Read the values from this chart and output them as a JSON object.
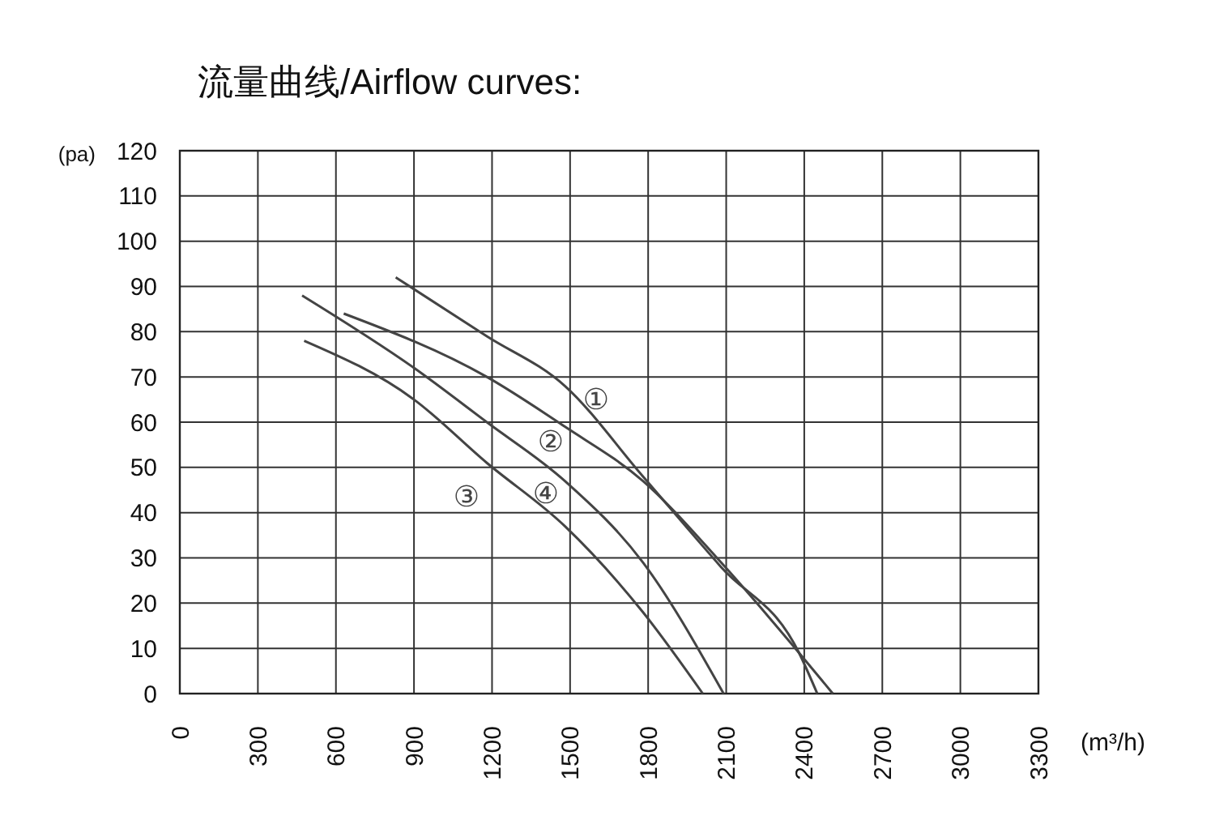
{
  "chart_data": {
    "type": "line",
    "title": "流量曲线/Airflow curves:",
    "xlabel": "(m³/h)",
    "ylabel": "(pa)",
    "xlim": [
      0,
      3300
    ],
    "xticks": [
      0,
      300,
      600,
      900,
      1200,
      1500,
      1800,
      2100,
      2400,
      2700,
      3000,
      3300
    ],
    "ylim": [
      0,
      120
    ],
    "yticks": [
      0,
      10,
      20,
      30,
      40,
      50,
      60,
      70,
      80,
      90,
      100,
      110,
      120
    ],
    "grid": true,
    "marker": "none",
    "line_style": "solid",
    "series": [
      {
        "name": "①",
        "color": "#444444",
        "x": [
          830,
          1180,
          1480,
          1780,
          2080,
          2380,
          2450
        ],
        "values": [
          92,
          79,
          68,
          48,
          28,
          9,
          0
        ]
      },
      {
        "name": "②",
        "color": "#444444",
        "x": [
          630,
          1180,
          1480,
          1780,
          2080,
          2380,
          2510
        ],
        "values": [
          84,
          70,
          59,
          47,
          29,
          9,
          0
        ]
      },
      {
        "name": "③",
        "color": "#444444",
        "x": [
          478,
          900,
          1180,
          1480,
          1780,
          2010
        ],
        "values": [
          78,
          65,
          51,
          37,
          18,
          0
        ]
      },
      {
        "name": "④",
        "color": "#444444",
        "x": [
          470,
          900,
          1180,
          1480,
          1780,
          2090
        ],
        "values": [
          88,
          72,
          60,
          47,
          29,
          0
        ]
      }
    ]
  }
}
